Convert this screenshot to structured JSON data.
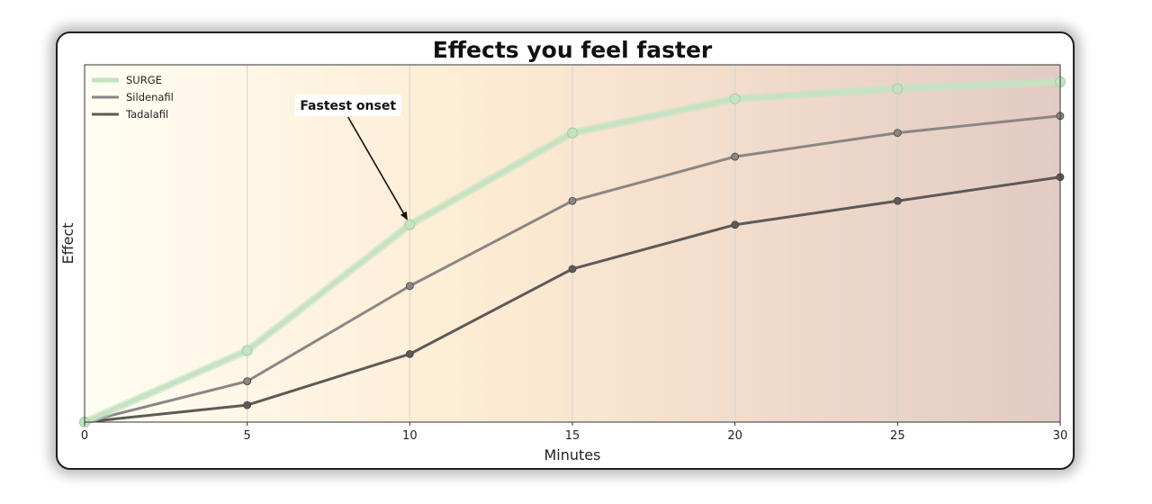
{
  "chart_data": {
    "type": "line",
    "title": "Effects you feel faster",
    "xlabel": "Minutes",
    "ylabel": "Effect",
    "x": [
      0,
      5,
      10,
      15,
      20,
      25,
      30
    ],
    "xlim": [
      0,
      30
    ],
    "ylim": [
      0,
      105
    ],
    "y_ticks_shown": false,
    "grid": "vertical",
    "legend_position": "upper-left",
    "background": "gradient from pale yellow to dusty rose",
    "series": [
      {
        "name": "SURGE",
        "color": "#c5e3c3",
        "values": [
          0,
          21,
          58,
          85,
          95,
          98,
          100
        ]
      },
      {
        "name": "Sildenafil",
        "color": "#8a8685",
        "values": [
          0,
          12,
          40,
          65,
          78,
          85,
          90
        ]
      },
      {
        "name": "Tadalafil",
        "color": "#5c5958",
        "values": [
          0,
          5,
          20,
          45,
          58,
          65,
          72
        ]
      }
    ],
    "annotation": {
      "text": "Fastest onset",
      "series": "SURGE",
      "x": 10,
      "y": 58
    }
  }
}
